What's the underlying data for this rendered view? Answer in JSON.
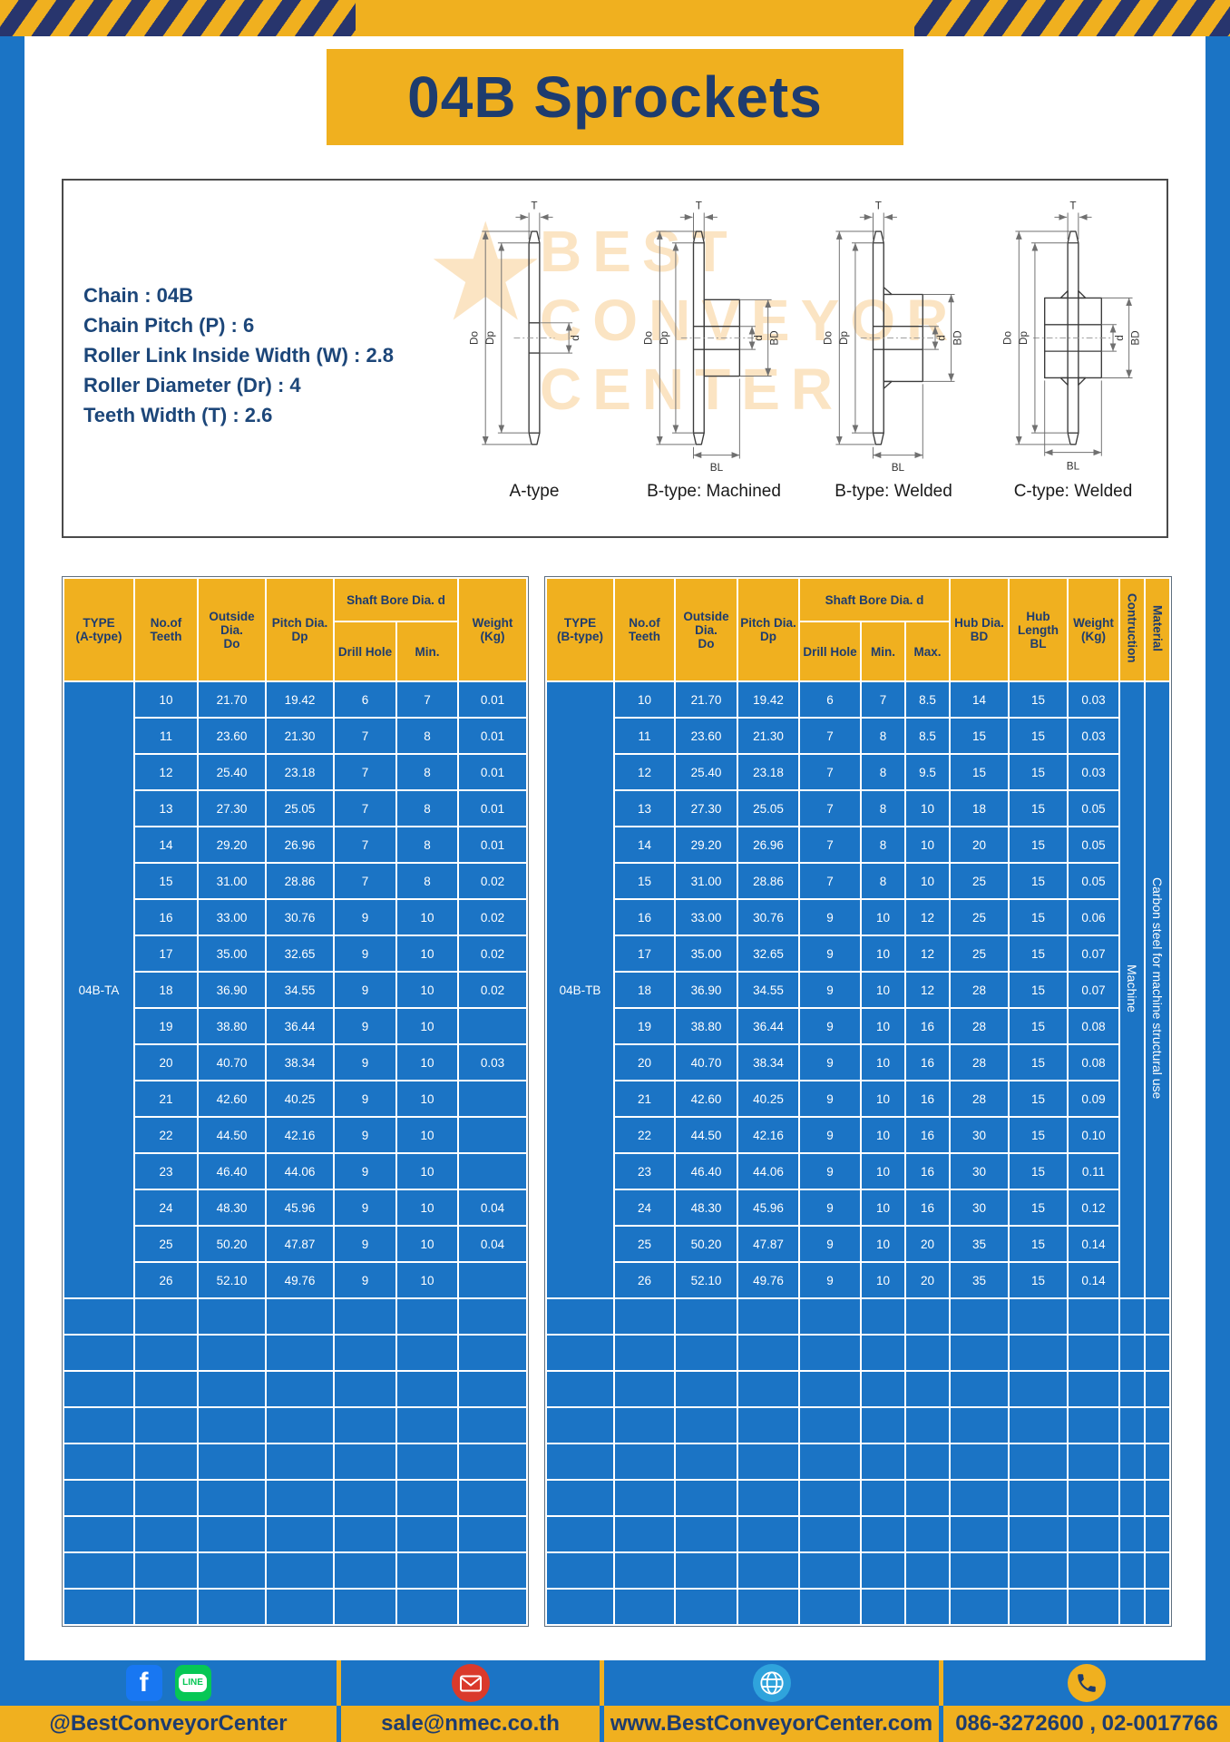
{
  "page": {
    "title": "04B Sprockets"
  },
  "colors": {
    "frame_blue": "#1B74C5",
    "gold": "#F0B01F",
    "navy": "#1E3C6E",
    "cell_blue": "#1B74C5",
    "white": "#FFFFFF"
  },
  "specs": {
    "lines": [
      "Chain : 04B",
      "Chain Pitch (P) : 6",
      "Roller Link Inside Width (W) : 2.8",
      "Roller Diameter (Dr) : 4",
      "Teeth Width (T) : 2.6"
    ]
  },
  "watermark": {
    "star": "★",
    "lines": [
      "BEST",
      "CONVEYOR",
      "CENTER"
    ]
  },
  "drawings": {
    "captions": [
      "A-type",
      "B-type: Machined",
      "B-type: Welded",
      "C-type: Welded"
    ],
    "dims": {
      "t": "T",
      "outer": "Do",
      "pitch": "Dp",
      "bore": "d",
      "hub": "BD",
      "hublen": "BL"
    }
  },
  "table_a": {
    "header": {
      "type": [
        "TYPE",
        "(A-type)"
      ],
      "teeth": [
        "No.of",
        "Teeth"
      ],
      "outside": [
        "Outside",
        "Dia.",
        "Do"
      ],
      "pitch": [
        "Pitch Dia.",
        "Dp"
      ],
      "shaft_bore": [
        "Shaft Bore Dia. d"
      ],
      "drill": [
        "Drill Hole"
      ],
      "min": [
        "Min."
      ],
      "weight": [
        "Weight",
        "(Kg)"
      ]
    },
    "type_label": "04B-TA",
    "rows": [
      [
        "10",
        "21.70",
        "19.42",
        "6",
        "7",
        "0.01"
      ],
      [
        "11",
        "23.60",
        "21.30",
        "7",
        "8",
        "0.01"
      ],
      [
        "12",
        "25.40",
        "23.18",
        "7",
        "8",
        "0.01"
      ],
      [
        "13",
        "27.30",
        "25.05",
        "7",
        "8",
        "0.01"
      ],
      [
        "14",
        "29.20",
        "26.96",
        "7",
        "8",
        "0.01"
      ],
      [
        "15",
        "31.00",
        "28.86",
        "7",
        "8",
        "0.02"
      ],
      [
        "16",
        "33.00",
        "30.76",
        "9",
        "10",
        "0.02"
      ],
      [
        "17",
        "35.00",
        "32.65",
        "9",
        "10",
        "0.02"
      ],
      [
        "18",
        "36.90",
        "34.55",
        "9",
        "10",
        "0.02"
      ],
      [
        "19",
        "38.80",
        "36.44",
        "9",
        "10",
        ""
      ],
      [
        "20",
        "40.70",
        "38.34",
        "9",
        "10",
        "0.03"
      ],
      [
        "21",
        "42.60",
        "40.25",
        "9",
        "10",
        ""
      ],
      [
        "22",
        "44.50",
        "42.16",
        "9",
        "10",
        ""
      ],
      [
        "23",
        "46.40",
        "44.06",
        "9",
        "10",
        ""
      ],
      [
        "24",
        "48.30",
        "45.96",
        "9",
        "10",
        "0.04"
      ],
      [
        "25",
        "50.20",
        "47.87",
        "9",
        "10",
        "0.04"
      ],
      [
        "26",
        "52.10",
        "49.76",
        "9",
        "10",
        ""
      ]
    ]
  },
  "table_b": {
    "header": {
      "type": [
        "TYPE",
        "(B-type)"
      ],
      "teeth": [
        "No.of",
        "Teeth"
      ],
      "outside": [
        "Outside",
        "Dia.",
        "Do"
      ],
      "pitch": [
        "Pitch Dia.",
        "Dp"
      ],
      "shaft_bore": [
        "Shaft Bore Dia. d"
      ],
      "drill": [
        "Drill Hole"
      ],
      "min": [
        "Min."
      ],
      "max": [
        "Max."
      ],
      "hub_dia": [
        "Hub Dia.",
        "BD"
      ],
      "hub_len": [
        "Hub",
        "Length",
        "BL"
      ],
      "weight": [
        "Weight",
        "(Kg)"
      ],
      "construction": [
        "Contruction"
      ],
      "material": [
        "Material"
      ]
    },
    "type_label": "04B-TB",
    "construction_label": "Machine",
    "material_label": "Carbon steel for machine structural use",
    "rows": [
      [
        "10",
        "21.70",
        "19.42",
        "6",
        "7",
        "8.5",
        "14",
        "15",
        "0.03"
      ],
      [
        "11",
        "23.60",
        "21.30",
        "7",
        "8",
        "8.5",
        "15",
        "15",
        "0.03"
      ],
      [
        "12",
        "25.40",
        "23.18",
        "7",
        "8",
        "9.5",
        "15",
        "15",
        "0.03"
      ],
      [
        "13",
        "27.30",
        "25.05",
        "7",
        "8",
        "10",
        "18",
        "15",
        "0.05"
      ],
      [
        "14",
        "29.20",
        "26.96",
        "7",
        "8",
        "10",
        "20",
        "15",
        "0.05"
      ],
      [
        "15",
        "31.00",
        "28.86",
        "7",
        "8",
        "10",
        "25",
        "15",
        "0.05"
      ],
      [
        "16",
        "33.00",
        "30.76",
        "9",
        "10",
        "12",
        "25",
        "15",
        "0.06"
      ],
      [
        "17",
        "35.00",
        "32.65",
        "9",
        "10",
        "12",
        "25",
        "15",
        "0.07"
      ],
      [
        "18",
        "36.90",
        "34.55",
        "9",
        "10",
        "12",
        "28",
        "15",
        "0.07"
      ],
      [
        "19",
        "38.80",
        "36.44",
        "9",
        "10",
        "16",
        "28",
        "15",
        "0.08"
      ],
      [
        "20",
        "40.70",
        "38.34",
        "9",
        "10",
        "16",
        "28",
        "15",
        "0.08"
      ],
      [
        "21",
        "42.60",
        "40.25",
        "9",
        "10",
        "16",
        "28",
        "15",
        "0.09"
      ],
      [
        "22",
        "44.50",
        "42.16",
        "9",
        "10",
        "16",
        "30",
        "15",
        "0.10"
      ],
      [
        "23",
        "46.40",
        "44.06",
        "9",
        "10",
        "16",
        "30",
        "15",
        "0.11"
      ],
      [
        "24",
        "48.30",
        "45.96",
        "9",
        "10",
        "16",
        "30",
        "15",
        "0.12"
      ],
      [
        "25",
        "50.20",
        "47.87",
        "9",
        "10",
        "20",
        "35",
        "15",
        "0.14"
      ],
      [
        "26",
        "52.10",
        "49.76",
        "9",
        "10",
        "20",
        "35",
        "15",
        "0.14"
      ]
    ]
  },
  "footer": {
    "fb_letter": "f",
    "line_text": "LINE",
    "social_label": "@BestConveyorCenter",
    "email": "sale@nmec.co.th",
    "website": "www.BestConveyorCenter.com",
    "phone": "086-3272600 , 02-0017766"
  }
}
